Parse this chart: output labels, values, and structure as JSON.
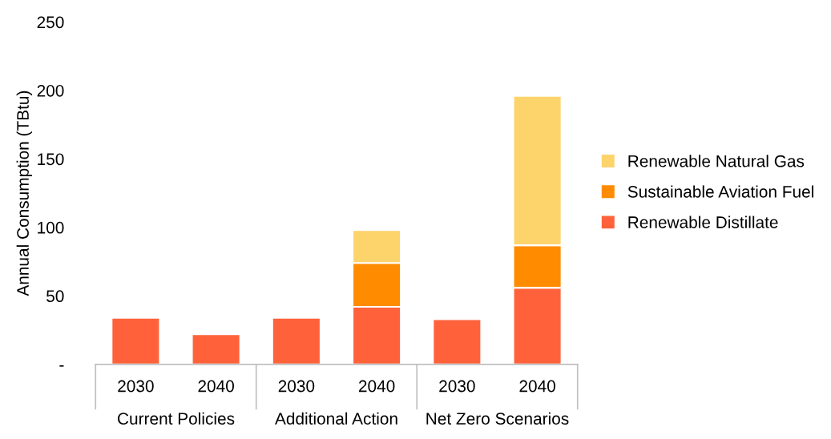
{
  "chart_data": {
    "type": "bar",
    "stacked": true,
    "ylabel": "Annual Consumption (TBtu)",
    "categories": [
      "2030",
      "2040",
      "2030",
      "2040",
      "2030",
      "2040"
    ],
    "annotations": [
      "Current Policies",
      "Additional Action",
      "Net Zero Scenarios"
    ],
    "series": [
      {
        "name": "Renewable Distillate",
        "color": "#ff623b",
        "values": [
          34,
          22,
          34,
          42,
          33,
          56
        ]
      },
      {
        "name": "Sustainable Aviation Fuel",
        "color": "#ff8b00",
        "values": [
          0,
          0,
          0,
          32,
          0,
          31
        ]
      },
      {
        "name": "Renewable Natural Gas",
        "color": "#fdd36b",
        "values": [
          0,
          0,
          0,
          24,
          0,
          109
        ]
      }
    ],
    "ylim": [
      0,
      250
    ],
    "yticks": [
      {
        "value": 0,
        "label": "-"
      },
      50,
      100,
      150,
      200,
      250
    ],
    "grid": false,
    "legend": "right"
  }
}
